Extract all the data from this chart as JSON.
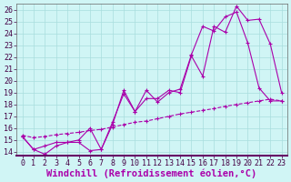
{
  "xlabel": "Windchill (Refroidissement éolien,°C)",
  "xlim": [
    -0.5,
    23.5
  ],
  "ylim": [
    13.7,
    26.5
  ],
  "xticks": [
    0,
    1,
    2,
    3,
    4,
    5,
    6,
    7,
    8,
    9,
    10,
    11,
    12,
    13,
    14,
    15,
    16,
    17,
    18,
    19,
    20,
    21,
    22,
    23
  ],
  "yticks": [
    14,
    15,
    16,
    17,
    18,
    19,
    20,
    21,
    22,
    23,
    24,
    25,
    26
  ],
  "bg_color": "#d0f5f5",
  "grid_color": "#a8dede",
  "line_color": "#aa00aa",
  "line1_x": [
    0,
    1,
    2,
    3,
    4,
    5,
    6,
    7,
    8,
    9,
    10,
    11,
    12,
    13,
    14,
    15,
    16,
    17,
    18,
    19,
    20,
    21,
    22,
    23
  ],
  "line1_y": [
    15.3,
    14.2,
    13.8,
    14.5,
    14.8,
    14.8,
    14.1,
    14.2,
    16.3,
    19.2,
    17.4,
    18.5,
    18.5,
    19.2,
    19.0,
    22.1,
    20.4,
    24.6,
    24.1,
    26.3,
    25.1,
    25.2,
    23.1,
    19.0
  ],
  "line2_x": [
    0,
    1,
    2,
    3,
    4,
    5,
    6,
    7,
    8,
    9,
    10,
    11,
    12,
    13,
    14,
    15,
    16,
    17,
    18,
    19,
    20,
    21,
    22,
    23
  ],
  "line2_y": [
    15.3,
    14.2,
    14.5,
    14.8,
    14.8,
    15.0,
    16.0,
    14.2,
    16.5,
    18.9,
    17.4,
    19.2,
    18.2,
    19.0,
    19.3,
    22.2,
    24.6,
    24.2,
    25.4,
    25.8,
    23.2,
    19.4,
    18.3,
    18.3
  ],
  "line3_x": [
    0,
    1,
    2,
    3,
    4,
    5,
    6,
    7,
    8,
    9,
    10,
    11,
    12,
    13,
    14,
    15,
    16,
    17,
    18,
    19,
    20,
    21,
    22,
    23
  ],
  "line3_y": [
    15.4,
    15.2,
    15.3,
    15.45,
    15.55,
    15.65,
    15.8,
    15.9,
    16.1,
    16.3,
    16.5,
    16.6,
    16.8,
    17.0,
    17.2,
    17.35,
    17.5,
    17.65,
    17.85,
    18.0,
    18.15,
    18.3,
    18.45,
    18.3
  ],
  "tick_fontsize": 6,
  "label_fontsize": 7.5
}
